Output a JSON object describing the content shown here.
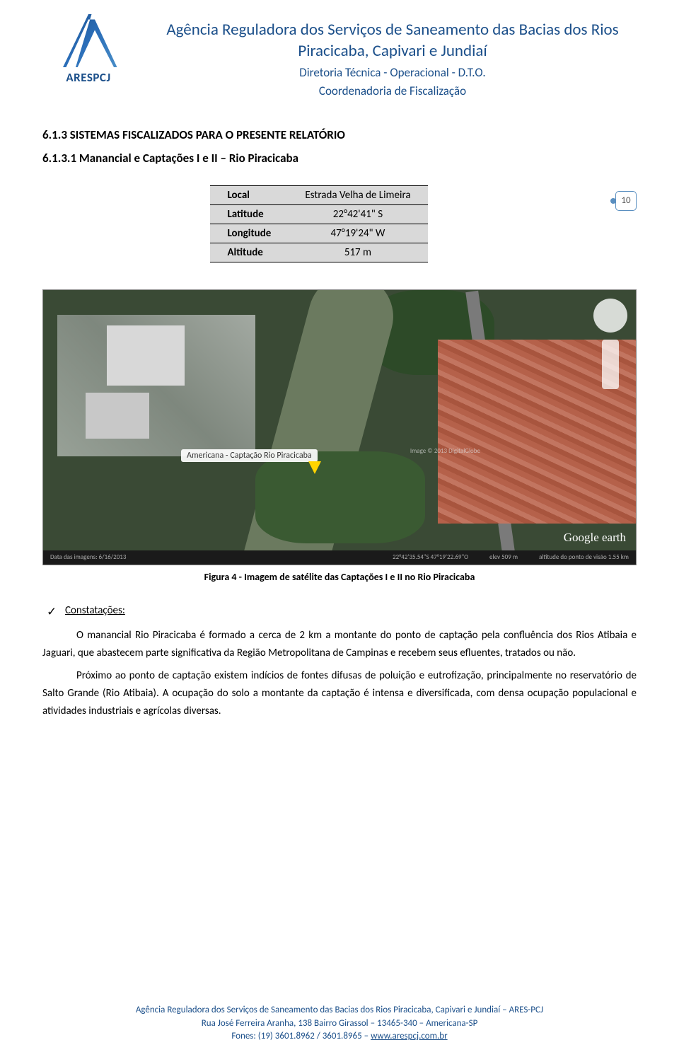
{
  "header": {
    "logo_text": "ARESPCJ",
    "title": "Agência Reguladora dos Serviços de Saneamento das Bacias dos Rios Piracicaba, Capivari e Jundiaí",
    "subtitle1": "Diretoria Técnica - Operacional - D.T.O.",
    "subtitle2": "Coordenadoria de Fiscalização"
  },
  "section": {
    "heading": "6.1.3 SISTEMAS FISCALIZADOS PARA O PRESENTE RELATÓRIO",
    "subheading": "6.1.3.1 Manancial e Captações I e II – Rio Piracicaba"
  },
  "page_number": "10",
  "location_table": {
    "rows": [
      {
        "label": "Local",
        "value": "Estrada Velha de Limeira"
      },
      {
        "label": "Latitude",
        "value": "22°42'41\" S"
      },
      {
        "label": "Longitude",
        "value": "47°19'24\" W"
      },
      {
        "label": "Altitude",
        "value": "517 m"
      }
    ]
  },
  "figure": {
    "map_label": "Americana - Captação Rio Piracicaba",
    "attribution": "Image © 2013 DigitalGlobe",
    "google_brand": "Google earth",
    "footer_date": "Data das imagens: 6/16/2013",
    "footer_coords": "22°42'35.54\"S  47°19'22.69\"O",
    "footer_alt": "elev  509 m",
    "footer_eye": "altitude do ponto de visão  1.55 km",
    "caption": "Figura 4 - Imagem de satélite das Captações I e II no Rio Piracicaba"
  },
  "body": {
    "constatacoes_label": "Constatações:",
    "para1": "O manancial Rio Piracicaba é formado a cerca de 2 km a montante do ponto de captação pela confluência dos Rios Atibaia e Jaguari, que abastecem parte significativa da Região Metropolitana de Campinas e recebem seus efluentes, tratados ou não.",
    "para2": "Próximo ao ponto de captação existem indícios de fontes difusas de poluição e eutrofização, principalmente no reservatório de Salto Grande (Rio Atibaia). A ocupação do solo a montante da captação é intensa e diversificada, com densa ocupação populacional e atividades industriais e agrícolas diversas."
  },
  "footer": {
    "line1": "Agência Reguladora dos Serviços de Saneamento das Bacias dos Rios Piracicaba, Capivari e Jundiaí – ARES-PCJ",
    "line2": "Rua José Ferreira Aranha, 138 Bairro Girassol – 13465-340 – Americana-SP",
    "phones": "Fones: (19) 3601.8962 / 3601.8965 – ",
    "url": "www.arespcj.com.br"
  },
  "colors": {
    "brand_blue": "#1b4f8a",
    "table_bg": "#d9d9d9"
  }
}
